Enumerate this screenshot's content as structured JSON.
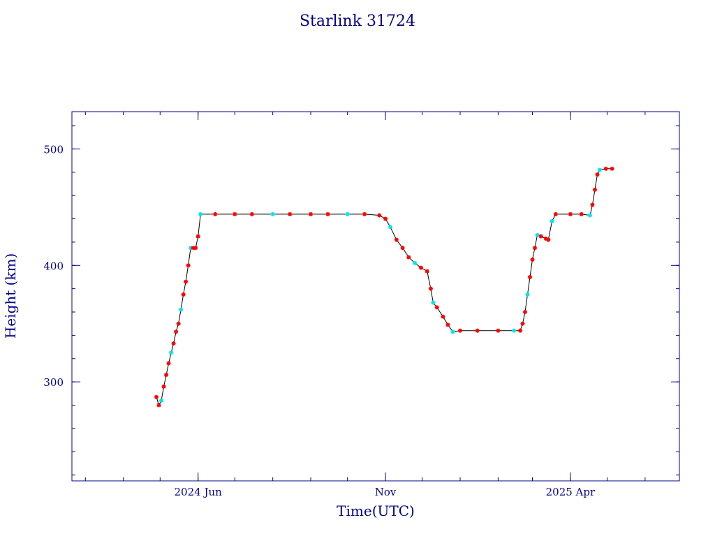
{
  "chart_data": {
    "type": "scatter",
    "title": "Starlink 31724",
    "xlabel": "Time(UTC)",
    "ylabel": "Height (km)",
    "ylim": [
      215,
      532
    ],
    "xlim": [
      "2024-02-19",
      "2025-06-29"
    ],
    "x_ticks": [
      {
        "date": "2024-06-01",
        "label": "2024 Jun"
      },
      {
        "date": "2024-11-01",
        "label": "Nov"
      },
      {
        "date": "2025-04-01",
        "label": "2025 Apr"
      }
    ],
    "y_ticks": [
      {
        "value": 300,
        "label": "300"
      },
      {
        "value": 400,
        "label": "400"
      },
      {
        "value": 500,
        "label": "500"
      }
    ],
    "grid": false,
    "colors": {
      "frame": "#00008b",
      "marker_primary": "#ff0000",
      "marker_secondary": "#00e5ee",
      "line": "#000000"
    },
    "series": [
      {
        "points": [
          [
            "2024-04-28",
            287
          ],
          [
            "2024-04-30",
            280
          ],
          [
            "2024-05-02",
            284
          ],
          [
            "2024-05-04",
            296
          ],
          [
            "2024-05-06",
            306
          ],
          [
            "2024-05-08",
            316
          ],
          [
            "2024-05-10",
            325
          ],
          [
            "2024-05-12",
            333
          ],
          [
            "2024-05-14",
            343
          ],
          [
            "2024-05-16",
            350
          ],
          [
            "2024-05-18",
            362
          ],
          [
            "2024-05-20",
            375
          ],
          [
            "2024-05-22",
            386
          ],
          [
            "2024-05-24",
            400
          ],
          [
            "2024-05-26",
            415
          ],
          [
            "2024-05-28",
            415
          ],
          [
            "2024-05-30",
            415
          ],
          [
            "2024-06-01",
            425
          ],
          [
            "2024-06-03",
            444
          ],
          [
            "2024-06-15",
            444
          ],
          [
            "2024-07-01",
            444
          ],
          [
            "2024-07-15",
            444
          ],
          [
            "2024-08-01",
            444
          ],
          [
            "2024-08-15",
            444
          ],
          [
            "2024-09-01",
            444
          ],
          [
            "2024-09-15",
            444
          ],
          [
            "2024-10-01",
            444
          ],
          [
            "2024-10-15",
            444
          ],
          [
            "2024-10-27",
            443
          ],
          [
            "2024-11-01",
            440
          ],
          [
            "2024-11-05",
            433
          ],
          [
            "2024-11-10",
            422
          ],
          [
            "2024-11-15",
            415
          ],
          [
            "2024-11-20",
            407
          ],
          [
            "2024-11-25",
            402
          ],
          [
            "2024-11-30",
            398
          ],
          [
            "2024-12-05",
            395
          ],
          [
            "2024-12-08",
            380
          ],
          [
            "2024-12-10",
            368
          ],
          [
            "2024-12-13",
            364
          ],
          [
            "2024-12-18",
            356
          ],
          [
            "2024-12-22",
            349
          ],
          [
            "2024-12-26",
            343
          ],
          [
            "2025-01-01",
            344
          ],
          [
            "2025-01-15",
            344
          ],
          [
            "2025-02-01",
            344
          ],
          [
            "2025-02-14",
            344
          ],
          [
            "2025-02-19",
            344
          ],
          [
            "2025-02-21",
            350
          ],
          [
            "2025-02-23",
            360
          ],
          [
            "2025-02-25",
            375
          ],
          [
            "2025-02-27",
            390
          ],
          [
            "2025-03-01",
            405
          ],
          [
            "2025-03-03",
            415
          ],
          [
            "2025-03-05",
            426
          ],
          [
            "2025-03-08",
            425
          ],
          [
            "2025-03-12",
            423
          ],
          [
            "2025-03-14",
            422
          ],
          [
            "2025-03-17",
            438
          ],
          [
            "2025-03-20",
            444
          ],
          [
            "2025-04-01",
            444
          ],
          [
            "2025-04-10",
            444
          ],
          [
            "2025-04-17",
            443
          ],
          [
            "2025-04-19",
            452
          ],
          [
            "2025-04-21",
            465
          ],
          [
            "2025-04-23",
            478
          ],
          [
            "2025-04-25",
            482
          ],
          [
            "2025-04-30",
            483
          ],
          [
            "2025-05-05",
            483
          ]
        ]
      }
    ]
  }
}
